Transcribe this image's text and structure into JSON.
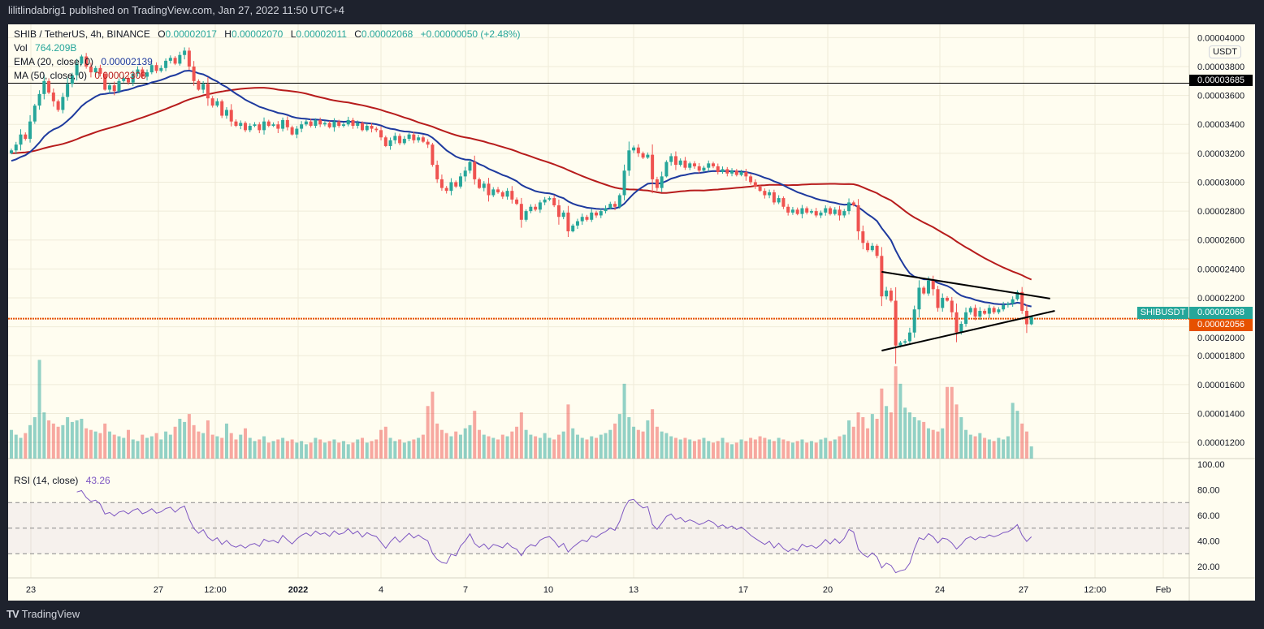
{
  "header": {
    "published": "lilitlindabrig1 published on TradingView.com, Jan 27, 2022 11:50 UTC+4"
  },
  "legend": {
    "symbol": "SHIB / TetherUS, 4h, BINANCE",
    "o_label": "O",
    "o": "0.00002017",
    "h_label": "H",
    "h": "0.00002070",
    "l_label": "L",
    "l": "0.00002011",
    "c_label": "C",
    "c": "0.00002068",
    "change": "+0.00000050 (+2.48%)",
    "vol_label": "Vol",
    "vol": "764.209B",
    "ema_label": "EMA (20, close, 0)",
    "ema": "0.00002139",
    "ma_label": "MA (50, close, 0)",
    "ma": "0.00002308",
    "rsi_label": "RSI (14, close)",
    "rsi": "43.26"
  },
  "axis": {
    "currency": "USDT",
    "hline_price": "0.00003685",
    "symbol_tag": "SHIBUSDT",
    "last_price": "0.00002068",
    "orange_line_price": "0.00002056"
  },
  "logo": {
    "text": "TradingView"
  },
  "chart_data": {
    "type": "candlestick",
    "symbol": "SHIBUSDT",
    "interval": "4h",
    "exchange": "BINANCE",
    "colors": {
      "up": "#26a69a",
      "down": "#ef5350",
      "ema": "#1e3a9e",
      "ma": "#b71c1c",
      "rsi": "#7e57c2",
      "hline": "#000000",
      "orange_line": "#e65100",
      "background": "#fffdf0"
    },
    "xticks": [
      "23",
      "27",
      "12:00",
      "2022",
      "4",
      "7",
      "10",
      "13",
      "17",
      "20",
      "24",
      "27",
      "12:00",
      "Feb"
    ],
    "yticks": [
      4e-05,
      3.8e-05,
      3.6e-05,
      3.4e-05,
      3.2e-05,
      3e-05,
      2.8e-05,
      2.6e-05,
      2.4e-05,
      2.2e-05,
      2e-05,
      1.8e-05,
      1.6e-05,
      1.4e-05,
      1.2e-05
    ],
    "ytick_labels": [
      "0.00004000",
      "0.00003800",
      "0.00003600",
      "0.00003400",
      "0.00003200",
      "0.00003000",
      "0.00002800",
      "0.00002600",
      "0.00002400",
      "0.00002200",
      "0.00002000",
      "0.00001800",
      "0.00001600",
      "0.00001400",
      "0.00001200"
    ],
    "rsi_ticks": [
      100,
      80,
      60,
      40,
      20
    ],
    "rsi_tick_labels": [
      "100.00",
      "80.00",
      "60.00",
      "40.00",
      "20.00"
    ],
    "rsi_band": [
      30,
      70
    ],
    "rsi_mid": 50,
    "ema_period": 20,
    "ma_period": 50,
    "rsi_period": 14,
    "hlines": [
      {
        "price": 3.685e-05,
        "color": "#000000",
        "style": "solid"
      },
      {
        "price": 2.056e-05,
        "color": "#e65100",
        "style": "dotted"
      }
    ],
    "trendlines": [
      {
        "from": [
          "2022-01-21 20:00",
          2.38e-05
        ],
        "to": [
          "2022-01-27 20:00",
          2.195e-05
        ]
      },
      {
        "from": [
          "2022-01-21 20:00",
          1.835e-05
        ],
        "to": [
          "2022-01-28 00:00",
          2.11e-05
        ]
      }
    ],
    "last_candle": {
      "open": 2.017e-05,
      "high": 2.07e-05,
      "low": 2.011e-05,
      "close": 2.068e-05
    },
    "close": [
      3.22e-05,
      3.26e-05,
      3.33e-05,
      3.3e-05,
      3.42e-05,
      3.53e-05,
      3.61e-05,
      3.7e-05,
      3.62e-05,
      3.56e-05,
      3.5e-05,
      3.59e-05,
      3.68e-05,
      3.74e-05,
      3.82e-05,
      3.87e-05,
      3.8e-05,
      3.76e-05,
      3.79e-05,
      3.75e-05,
      3.64e-05,
      3.67e-05,
      3.63e-05,
      3.7e-05,
      3.72e-05,
      3.69e-05,
      3.75e-05,
      3.78e-05,
      3.73e-05,
      3.76e-05,
      3.81e-05,
      3.77e-05,
      3.79e-05,
      3.84e-05,
      3.86e-05,
      3.82e-05,
      3.88e-05,
      3.91e-05,
      3.8e-05,
      3.7e-05,
      3.64e-05,
      3.68e-05,
      3.58e-05,
      3.53e-05,
      3.56e-05,
      3.46e-05,
      3.5e-05,
      3.42e-05,
      3.39e-05,
      3.41e-05,
      3.36e-05,
      3.39e-05,
      3.4e-05,
      3.36e-05,
      3.42e-05,
      3.39e-05,
      3.4e-05,
      3.37e-05,
      3.43e-05,
      3.38e-05,
      3.33e-05,
      3.37e-05,
      3.4e-05,
      3.42e-05,
      3.39e-05,
      3.43e-05,
      3.4e-05,
      3.41e-05,
      3.38e-05,
      3.42e-05,
      3.39e-05,
      3.4e-05,
      3.43e-05,
      3.39e-05,
      3.41e-05,
      3.36e-05,
      3.39e-05,
      3.37e-05,
      3.36e-05,
      3.31e-05,
      3.25e-05,
      3.29e-05,
      3.32e-05,
      3.27e-05,
      3.3e-05,
      3.33e-05,
      3.29e-05,
      3.31e-05,
      3.28e-05,
      3.26e-05,
      3.12e-05,
      3.02e-05,
      2.96e-05,
      2.94e-05,
      3e-05,
      2.97e-05,
      3.04e-05,
      3.08e-05,
      3.14e-05,
      3.02e-05,
      2.96e-05,
      2.99e-05,
      2.91e-05,
      2.95e-05,
      2.93e-05,
      2.9e-05,
      2.94e-05,
      2.88e-05,
      2.85e-05,
      2.74e-05,
      2.8e-05,
      2.83e-05,
      2.81e-05,
      2.86e-05,
      2.88e-05,
      2.89e-05,
      2.84e-05,
      2.76e-05,
      2.79e-05,
      2.66e-05,
      2.7e-05,
      2.73e-05,
      2.76e-05,
      2.74e-05,
      2.79e-05,
      2.77e-05,
      2.8e-05,
      2.82e-05,
      2.85e-05,
      2.83e-05,
      2.91e-05,
      3.08e-05,
      3.22e-05,
      3.24e-05,
      3.2e-05,
      3.17e-05,
      3.19e-05,
      3.02e-05,
      2.96e-05,
      3.04e-05,
      3.14e-05,
      3.18e-05,
      3.12e-05,
      3.15e-05,
      3.1e-05,
      3.13e-05,
      3.11e-05,
      3.08e-05,
      3.1e-05,
      3.13e-05,
      3.11e-05,
      3.07e-05,
      3.09e-05,
      3.06e-05,
      3.08e-05,
      3.05e-05,
      3.07e-05,
      3.04e-05,
      3e-05,
      2.97e-05,
      2.94e-05,
      2.91e-05,
      2.93e-05,
      2.86e-05,
      2.89e-05,
      2.83e-05,
      2.79e-05,
      2.81e-05,
      2.78e-05,
      2.82e-05,
      2.79e-05,
      2.8e-05,
      2.77e-05,
      2.79e-05,
      2.82e-05,
      2.78e-05,
      2.81e-05,
      2.77e-05,
      2.8e-05,
      2.86e-05,
      2.84e-05,
      2.66e-05,
      2.58e-05,
      2.53e-05,
      2.56e-05,
      2.49e-05,
      2.21e-05,
      2.25e-05,
      2.18e-05,
      1.87e-05,
      1.89e-05,
      1.9e-05,
      1.96e-05,
      2.12e-05,
      2.27e-05,
      2.23e-05,
      2.32e-05,
      2.26e-05,
      2.13e-05,
      2.2e-05,
      2.18e-05,
      2.1e-05,
      1.96e-05,
      2.02e-05,
      2.1e-05,
      2.13e-05,
      2.07e-05,
      2.11e-05,
      2.09e-05,
      2.13e-05,
      2.1e-05,
      2.12e-05,
      2.15e-05,
      2.16e-05,
      2.19e-05,
      2.24e-05,
      2.11e-05,
      2.017e-05,
      2.068e-05
    ],
    "volume_unit": "B",
    "volume": [
      1800,
      1500,
      1300,
      1600,
      2100,
      2600,
      6200,
      2900,
      2400,
      2200,
      2000,
      2100,
      2600,
      2300,
      2400,
      2500,
      1900,
      1800,
      1700,
      1600,
      2200,
      1700,
      1500,
      1400,
      1300,
      1800,
      1200,
      1100,
      1500,
      1300,
      1400,
      1600,
      1200,
      1700,
      1500,
      2000,
      2500,
      2300,
      2800,
      2100,
      1700,
      1600,
      2400,
      1500,
      1400,
      1300,
      2200,
      1600,
      1200,
      1500,
      1900,
      1300,
      1100,
      1200,
      1400,
      1000,
      1100,
      1200,
      1300,
      1100,
      1200,
      1000,
      1100,
      900,
      1000,
      1300,
      1200,
      1000,
      1100,
      1200,
      1000,
      1100,
      900,
      1000,
      1200,
      1300,
      1000,
      1100,
      1200,
      1800,
      2000,
      1300,
      1100,
      1200,
      1000,
      1100,
      1200,
      1300,
      1500,
      3300,
      4200,
      2200,
      1800,
      1600,
      1400,
      1700,
      1500,
      1900,
      2100,
      3000,
      1800,
      1500,
      1400,
      1300,
      1200,
      1500,
      1400,
      1700,
      2000,
      2900,
      1800,
      1500,
      1400,
      1300,
      1600,
      1300,
      1200,
      1500,
      1700,
      3400,
      1900,
      1500,
      1300,
      1200,
      1400,
      1300,
      1500,
      1600,
      1800,
      2200,
      2800,
      4700,
      2600,
      2000,
      1800,
      1700,
      2400,
      3100,
      2000,
      1700,
      1600,
      1400,
      1300,
      1200,
      1300,
      1200,
      1100,
      1200,
      1300,
      1100,
      1000,
      1100,
      1300,
      1000,
      900,
      1000,
      1200,
      1100,
      1300,
      1200,
      1400,
      1300,
      1200,
      1100,
      1300,
      1200,
      1100,
      1000,
      1100,
      1200,
      1000,
      1100,
      1000,
      1200,
      1300,
      1100,
      1200,
      1400,
      1500,
      2400,
      2000,
      2900,
      2600,
      1900,
      2800,
      2500,
      4400,
      3300,
      2900,
      5800,
      4700,
      3200,
      2900,
      2600,
      2400,
      2300,
      1900,
      1800,
      1700,
      1900,
      4500,
      4500,
      3400,
      2600,
      1800,
      1500,
      1400,
      1600,
      1300,
      1200,
      1100,
      1300,
      1200,
      1400,
      3500,
      3000,
      2200,
      1700,
      764.209
    ]
  }
}
